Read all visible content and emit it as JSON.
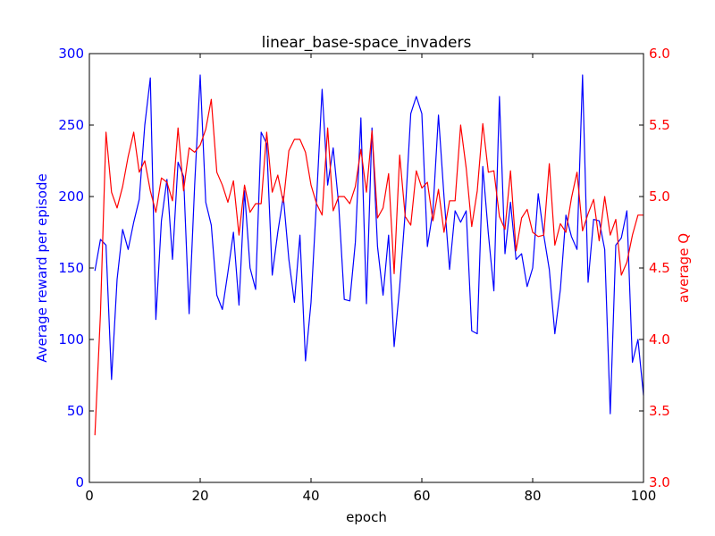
{
  "chart_data": {
    "type": "line",
    "title": "linear_base-space_invaders",
    "xlabel": "epoch",
    "ylabel_left": "Average reward per episode",
    "ylabel_right": "average Q",
    "xlim": [
      0,
      100
    ],
    "ylim_left": [
      0,
      300
    ],
    "ylim_right": [
      3.0,
      6.0
    ],
    "xticks": [
      "0",
      "20",
      "40",
      "60",
      "80",
      "100"
    ],
    "yticks_left": [
      "0",
      "50",
      "100",
      "150",
      "200",
      "250",
      "300"
    ],
    "yticks_right": [
      "3.0",
      "3.5",
      "4.0",
      "4.5",
      "5.0",
      "5.5",
      "6.0"
    ],
    "grid": false,
    "colors": {
      "left_axis": "#0000ff",
      "right_axis": "#ff0000",
      "frame": "#000000"
    },
    "x": [
      1,
      2,
      3,
      4,
      5,
      6,
      7,
      8,
      9,
      10,
      11,
      12,
      13,
      14,
      15,
      16,
      17,
      18,
      19,
      20,
      21,
      22,
      23,
      24,
      25,
      26,
      27,
      28,
      29,
      30,
      31,
      32,
      33,
      34,
      35,
      36,
      37,
      38,
      39,
      40,
      41,
      42,
      43,
      44,
      45,
      46,
      47,
      48,
      49,
      50,
      51,
      52,
      53,
      54,
      55,
      56,
      57,
      58,
      59,
      60,
      61,
      62,
      63,
      64,
      65,
      66,
      67,
      68,
      69,
      70,
      71,
      72,
      73,
      74,
      75,
      76,
      77,
      78,
      79,
      80,
      81,
      82,
      83,
      84,
      85,
      86,
      87,
      88,
      89,
      90,
      91,
      92,
      93,
      94,
      95,
      96,
      97,
      98,
      99,
      100
    ],
    "series": [
      {
        "axis": "left",
        "color": "#0000ff",
        "values": [
          148,
          170,
          166,
          72,
          142,
          177,
          163,
          182,
          198,
          250,
          283,
          114,
          183,
          212,
          156,
          224,
          214,
          118,
          208,
          285,
          196,
          180,
          131,
          121,
          147,
          175,
          124,
          204,
          150,
          135,
          245,
          237,
          145,
          175,
          200,
          156,
          126,
          173,
          85,
          126,
          198,
          275,
          208,
          234,
          194,
          128,
          127,
          168,
          255,
          125,
          248,
          165,
          131,
          173,
          95,
          137,
          189,
          258,
          270,
          258,
          165,
          190,
          257,
          200,
          149,
          190,
          182,
          190,
          106,
          104,
          221,
          174,
          134,
          270,
          160,
          196,
          156,
          160,
          137,
          150,
          202,
          173,
          149,
          104,
          135,
          187,
          172,
          163,
          285,
          140,
          184,
          183,
          163,
          48,
          166,
          171,
          190,
          84,
          100,
          61
        ]
      },
      {
        "axis": "right",
        "color": "#ff0000",
        "values": [
          3.33,
          4.18,
          5.45,
          5.03,
          4.92,
          5.07,
          5.28,
          5.45,
          5.17,
          5.25,
          5.04,
          4.89,
          5.13,
          5.1,
          4.97,
          5.48,
          5.04,
          5.34,
          5.31,
          5.36,
          5.47,
          5.68,
          5.17,
          5.08,
          4.96,
          5.11,
          4.73,
          5.08,
          4.89,
          4.95,
          4.95,
          5.45,
          5.03,
          5.15,
          4.96,
          5.32,
          5.4,
          5.4,
          5.31,
          5.08,
          4.95,
          4.87,
          5.48,
          4.9,
          5.0,
          5.0,
          4.95,
          5.07,
          5.33,
          5.03,
          5.46,
          4.85,
          4.92,
          5.16,
          4.46,
          5.29,
          4.86,
          4.8,
          5.18,
          5.06,
          5.1,
          4.83,
          5.05,
          4.75,
          4.97,
          4.97,
          5.5,
          5.2,
          4.79,
          5.04,
          5.51,
          5.17,
          5.18,
          4.86,
          4.77,
          5.18,
          4.62,
          4.85,
          4.91,
          4.75,
          4.72,
          4.73,
          5.23,
          4.66,
          4.81,
          4.75,
          4.99,
          5.17,
          4.76,
          4.88,
          4.98,
          4.69,
          5.0,
          4.73,
          4.84,
          4.45,
          4.54,
          4.73,
          4.87,
          4.87
        ]
      }
    ]
  }
}
